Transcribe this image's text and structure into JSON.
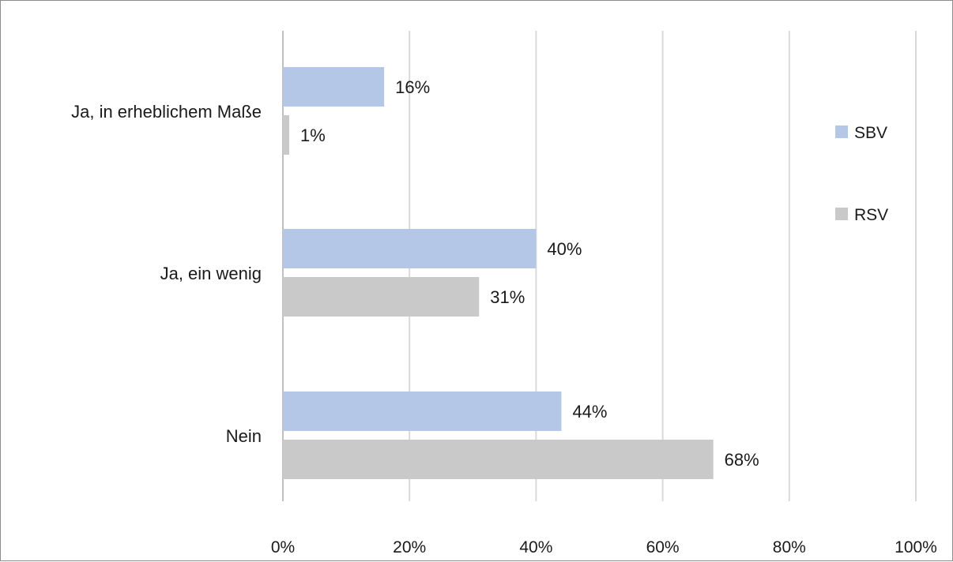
{
  "chart_data": {
    "type": "bar",
    "orientation": "horizontal",
    "title": "",
    "xlabel": "",
    "ylabel": "",
    "categories": [
      "Ja, in erheblichem Maße",
      "Ja, ein wenig",
      "Nein"
    ],
    "series": [
      {
        "name": "SBV",
        "color": "#b4c7e7",
        "values": [
          16,
          40,
          44
        ],
        "labels": [
          "16%",
          "40%",
          "44%"
        ]
      },
      {
        "name": "RSV",
        "color": "#c9c9c9",
        "values": [
          1,
          31,
          68
        ],
        "labels": [
          "1%",
          "31%",
          "68%"
        ]
      }
    ],
    "xlim": [
      0,
      100
    ],
    "x_ticks": [
      0,
      20,
      40,
      60,
      80,
      100
    ],
    "x_tick_labels": [
      "0%",
      "20%",
      "40%",
      "60%",
      "80%",
      "100%"
    ],
    "grid": true,
    "gridline_color": "#d9d9d9",
    "legend_placement": "right"
  }
}
